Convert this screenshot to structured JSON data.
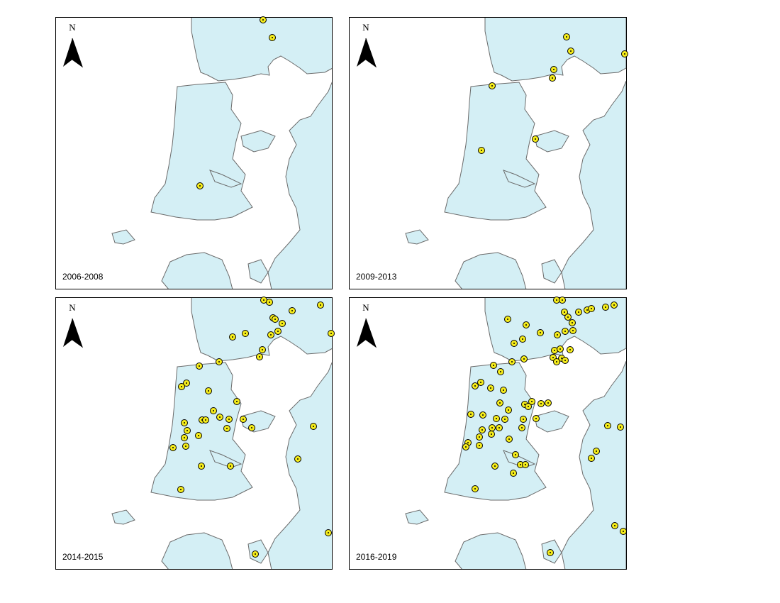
{
  "panels": [
    {
      "label": "2006-2008",
      "north": "N"
    },
    {
      "label": "2009-2013",
      "north": "N"
    },
    {
      "label": "2014-2015",
      "north": "N"
    },
    {
      "label": "2016-2019",
      "north": "N"
    }
  ]
}
